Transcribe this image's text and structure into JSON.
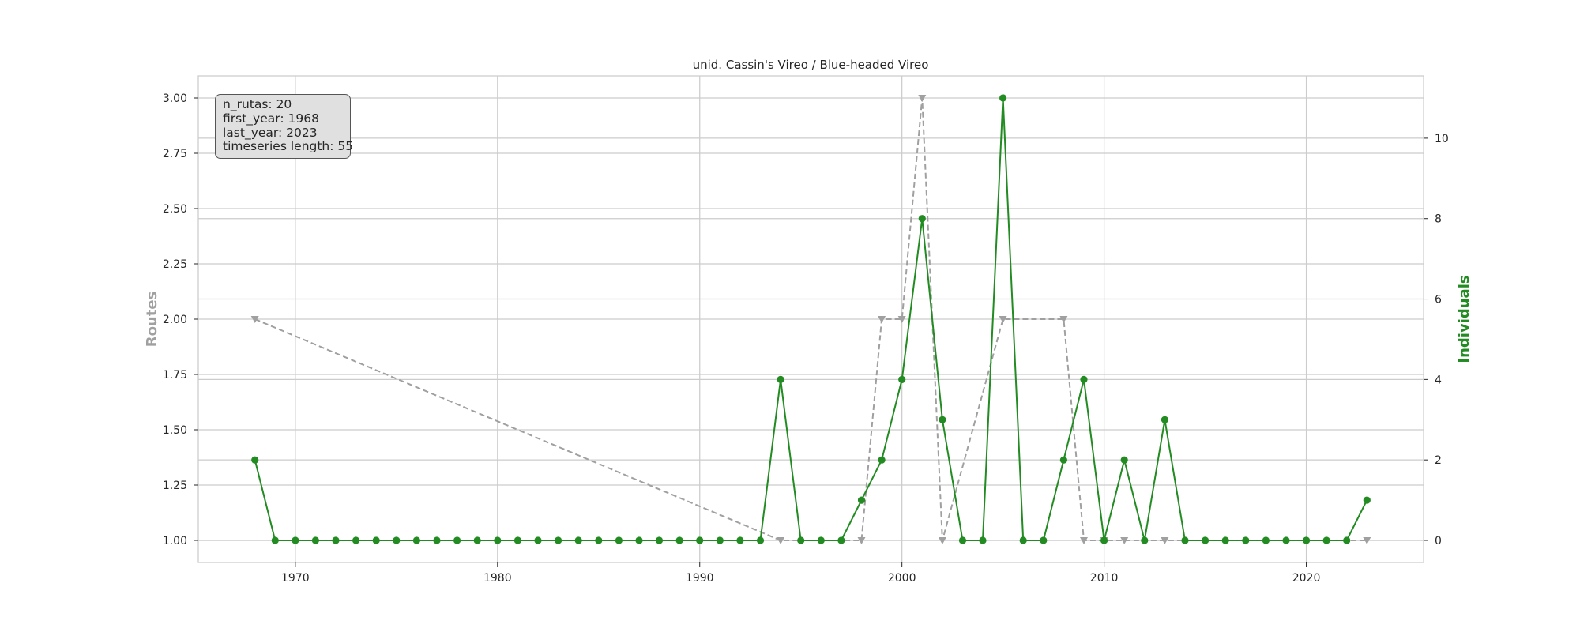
{
  "chart_data": {
    "type": "line",
    "title": "unid. Cassin's Vireo / Blue-headed Vireo",
    "xlabel": "",
    "ylabel": "Routes",
    "y2label": "Individuals",
    "xlim": [
      1965.2,
      2025.8
    ],
    "ylim": [
      0.9,
      3.1
    ],
    "y2lim": [
      -0.55,
      11.55
    ],
    "xticks": [
      1970,
      1980,
      1990,
      2000,
      2010,
      2020
    ],
    "yticks": [
      "1.00",
      "1.25",
      "1.50",
      "1.75",
      "2.00",
      "2.25",
      "2.50",
      "2.75",
      "3.00"
    ],
    "y2ticks": [
      0,
      2,
      4,
      6,
      8,
      10
    ],
    "grid": true,
    "series": [
      {
        "axis": "left",
        "style": "dashed",
        "marker": "triangle-down",
        "color": "#a0a0a0",
        "x": [
          1968,
          1994,
          1998,
          1999,
          2000,
          2001,
          2002,
          2005,
          2008,
          2009,
          2010,
          2011,
          2013,
          2023
        ],
        "values": [
          2,
          1,
          1,
          2,
          2,
          3,
          1,
          2,
          2,
          1,
          1,
          1,
          1,
          1
        ]
      },
      {
        "axis": "right",
        "style": "solid",
        "marker": "circle",
        "color": "#228b22",
        "x": [
          1968,
          1969,
          1970,
          1971,
          1972,
          1973,
          1974,
          1975,
          1976,
          1977,
          1978,
          1979,
          1980,
          1981,
          1982,
          1983,
          1984,
          1985,
          1986,
          1987,
          1988,
          1989,
          1990,
          1991,
          1992,
          1993,
          1994,
          1995,
          1996,
          1997,
          1998,
          1999,
          2000,
          2001,
          2002,
          2003,
          2004,
          2005,
          2006,
          2007,
          2008,
          2009,
          2010,
          2011,
          2012,
          2013,
          2014,
          2015,
          2016,
          2017,
          2018,
          2019,
          2020,
          2021,
          2022,
          2023
        ],
        "values": [
          2,
          0,
          0,
          0,
          0,
          0,
          0,
          0,
          0,
          0,
          0,
          0,
          0,
          0,
          0,
          0,
          0,
          0,
          0,
          0,
          0,
          0,
          0,
          0,
          0,
          0,
          4,
          0,
          0,
          0,
          1,
          2,
          4,
          8,
          3,
          0,
          0,
          11,
          0,
          0,
          2,
          4,
          0,
          2,
          0,
          3,
          0,
          0,
          0,
          0,
          0,
          0,
          0,
          0,
          0,
          1
        ]
      }
    ]
  },
  "info_box": {
    "lines": [
      "n_rutas: 20",
      "first_year: 1968",
      "last_year: 2023",
      "timeseries length: 55"
    ]
  }
}
